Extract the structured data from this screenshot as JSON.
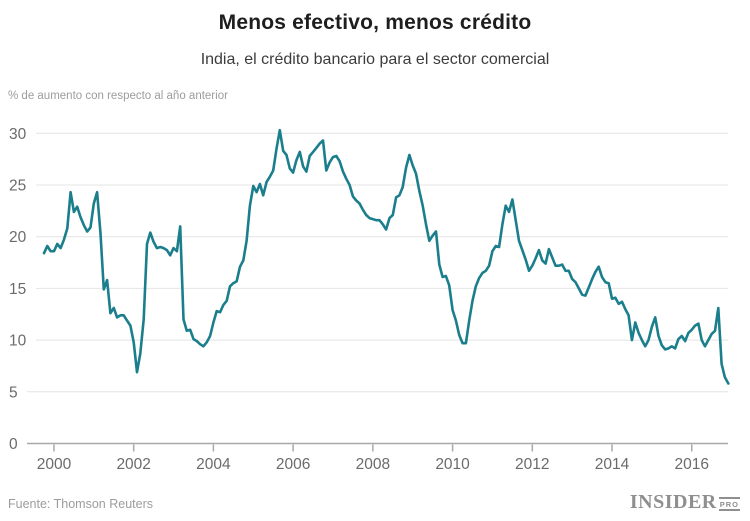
{
  "chart_data": {
    "type": "line",
    "title": "Menos efectivo, menos crédito",
    "subtitle": "India, el crédito bancario para el sector comercial",
    "ylabel": "% de aumento con respecto al año anterior",
    "xlabel": "",
    "legend": false,
    "grid": true,
    "ylim": [
      0,
      32
    ],
    "xlim": [
      1999.7,
      2017.0
    ],
    "y_ticks": [
      0,
      5,
      10,
      15,
      20,
      25,
      30
    ],
    "x_ticks": [
      2000,
      2002,
      2004,
      2006,
      2008,
      2010,
      2012,
      2014,
      2016
    ],
    "line_color": "#1b7e8c",
    "grid_color": "#e4e4e4",
    "axis_color": "#a8a8a8",
    "series": [
      {
        "name": "India, el crédito bancario para el sector comercial (% interanual)",
        "start": "1999-10",
        "frequency": "monthly",
        "color": "#1b7e8c",
        "values": [
          18.4,
          19.1,
          18.6,
          18.6,
          19.3,
          18.9,
          19.7,
          20.8,
          24.3,
          22.4,
          22.9,
          21.9,
          21.1,
          20.5,
          20.9,
          23.2,
          24.3,
          20.3,
          14.9,
          15.8,
          12.6,
          13.1,
          12.2,
          12.4,
          12.4,
          11.9,
          11.4,
          9.8,
          6.9,
          8.7,
          12.0,
          19.3,
          20.4,
          19.5,
          18.9,
          19.0,
          18.9,
          18.7,
          18.2,
          18.9,
          18.6,
          21.0,
          12.0,
          10.9,
          11.0,
          10.1,
          9.9,
          9.6,
          9.4,
          9.8,
          10.4,
          11.7,
          12.8,
          12.7,
          13.4,
          13.8,
          15.2,
          15.5,
          15.7,
          17.1,
          17.7,
          19.6,
          23.0,
          24.9,
          24.3,
          25.1,
          24.0,
          25.3,
          25.8,
          26.4,
          28.5,
          30.3,
          28.3,
          27.9,
          26.6,
          26.2,
          27.4,
          28.2,
          26.8,
          26.3,
          27.8,
          28.2,
          28.6,
          29.0,
          29.3,
          26.4,
          27.2,
          27.7,
          27.8,
          27.3,
          26.3,
          25.6,
          25.0,
          23.9,
          23.5,
          23.2,
          22.6,
          22.1,
          21.8,
          21.7,
          21.6,
          21.6,
          21.2,
          20.7,
          21.8,
          22.1,
          23.8,
          24.0,
          24.8,
          26.7,
          27.9,
          26.9,
          26.1,
          24.4,
          23.0,
          21.2,
          19.6,
          20.1,
          20.5,
          17.3,
          16.1,
          16.2,
          15.3,
          12.9,
          11.9,
          10.5,
          9.7,
          9.7,
          11.9,
          13.8,
          15.2,
          16.0,
          16.5,
          16.7,
          17.2,
          18.6,
          19.1,
          19.0,
          21.2,
          23.0,
          22.4,
          23.6,
          21.6,
          19.6,
          18.7,
          17.8,
          16.7,
          17.2,
          17.9,
          18.7,
          17.7,
          17.4,
          18.8,
          18.0,
          17.2,
          17.2,
          17.3,
          16.7,
          16.7,
          15.9,
          15.6,
          15.0,
          14.4,
          14.3,
          15.1,
          15.9,
          16.6,
          17.1,
          16.1,
          15.6,
          15.5,
          14.0,
          14.1,
          13.5,
          13.7,
          13.0,
          12.4,
          10.0,
          11.7,
          10.7,
          10.0,
          9.4,
          10.0,
          11.3,
          12.2,
          10.4,
          9.5,
          9.1,
          9.2,
          9.4,
          9.2,
          10.1,
          10.4,
          9.9,
          10.7,
          11.0,
          11.4,
          11.6,
          10.0,
          9.4,
          10.0,
          10.6,
          10.9,
          13.1,
          7.7,
          6.4,
          5.8
        ]
      }
    ]
  },
  "footer": {
    "source": "Fuente: Thomson Reuters",
    "brand": "INSIDER",
    "brand_suffix": "PRO"
  }
}
